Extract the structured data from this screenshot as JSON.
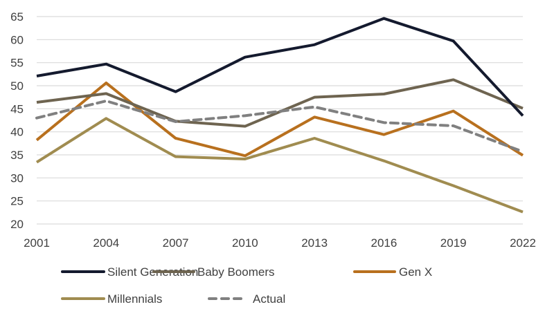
{
  "chart_data": {
    "type": "line",
    "title": "",
    "xlabel": "",
    "ylabel": "",
    "x": [
      "2001",
      "2004",
      "2007",
      "2010",
      "2013",
      "2016",
      "2019",
      "2022"
    ],
    "ylim": [
      20,
      65
    ],
    "yticks": [
      20,
      25,
      30,
      35,
      40,
      45,
      50,
      55,
      60,
      65
    ],
    "grid": true,
    "legend_position": "bottom",
    "series": [
      {
        "name": "Silent Generation",
        "color": "#141a2e",
        "dashed": false,
        "values": [
          52.1,
          54.7,
          48.7,
          56.2,
          58.9,
          64.6,
          59.7,
          43.5
        ]
      },
      {
        "name": "Baby Boomers",
        "color": "#6e6450",
        "dashed": false,
        "values": [
          46.4,
          48.3,
          42.3,
          41.2,
          47.5,
          48.2,
          51.3,
          45.1
        ]
      },
      {
        "name": "Gen X",
        "color": "#b8701e",
        "dashed": false,
        "values": [
          38.2,
          50.6,
          38.6,
          34.8,
          43.2,
          39.4,
          44.5,
          34.9
        ]
      },
      {
        "name": "Millennials",
        "color": "#a08c50",
        "dashed": false,
        "values": [
          33.4,
          42.9,
          34.6,
          34.1,
          38.6,
          33.7,
          28.3,
          22.6
        ]
      },
      {
        "name": "Actual",
        "color": "#808080",
        "dashed": true,
        "values": [
          43.0,
          46.7,
          42.2,
          43.5,
          45.4,
          42.0,
          41.3,
          35.7
        ]
      }
    ]
  }
}
